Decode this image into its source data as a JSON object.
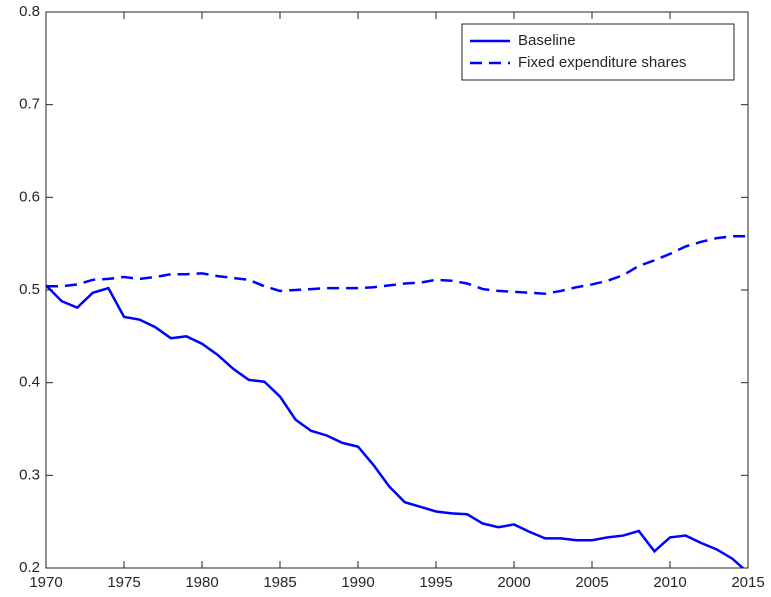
{
  "chart_data": {
    "type": "line",
    "x": [
      1970,
      1971,
      1972,
      1973,
      1974,
      1975,
      1976,
      1977,
      1978,
      1979,
      1980,
      1981,
      1982,
      1983,
      1984,
      1985,
      1986,
      1987,
      1988,
      1989,
      1990,
      1991,
      1992,
      1993,
      1994,
      1995,
      1996,
      1997,
      1998,
      1999,
      2000,
      2001,
      2002,
      2003,
      2004,
      2005,
      2006,
      2007,
      2008,
      2009,
      2010,
      2011,
      2012,
      2013,
      2014,
      2015
    ],
    "series": [
      {
        "name": "Baseline",
        "color": "#0000ff",
        "style": "solid",
        "values": [
          0.505,
          0.488,
          0.481,
          0.497,
          0.502,
          0.471,
          0.468,
          0.46,
          0.448,
          0.45,
          0.442,
          0.43,
          0.415,
          0.403,
          0.401,
          0.385,
          0.36,
          0.348,
          0.343,
          0.335,
          0.331,
          0.311,
          0.288,
          0.271,
          0.266,
          0.261,
          0.259,
          0.258,
          0.248,
          0.244,
          0.247,
          0.239,
          0.232,
          0.232,
          0.23,
          0.23,
          0.233,
          0.235,
          0.24,
          0.218,
          0.233,
          0.235,
          0.227,
          0.22,
          0.21,
          0.195
        ]
      },
      {
        "name": "Fixed expenditure shares",
        "color": "#0000ff",
        "style": "dashed",
        "values": [
          0.504,
          0.504,
          0.506,
          0.511,
          0.512,
          0.514,
          0.512,
          0.514,
          0.517,
          0.517,
          0.518,
          0.515,
          0.513,
          0.511,
          0.504,
          0.499,
          0.5,
          0.501,
          0.502,
          0.502,
          0.502,
          0.503,
          0.505,
          0.507,
          0.508,
          0.511,
          0.51,
          0.507,
          0.501,
          0.499,
          0.498,
          0.497,
          0.496,
          0.499,
          0.503,
          0.506,
          0.51,
          0.516,
          0.526,
          0.532,
          0.539,
          0.547,
          0.552,
          0.556,
          0.558,
          0.558
        ]
      }
    ],
    "xlim": [
      1970,
      2015
    ],
    "xticks": [
      1970,
      1975,
      1980,
      1985,
      1990,
      1995,
      2000,
      2005,
      2010,
      2015
    ],
    "ylim": [
      0.2,
      0.8
    ],
    "yticks": [
      0.2,
      0.3,
      0.4,
      0.5,
      0.6,
      0.7,
      0.8
    ],
    "grid": false,
    "legend": "northeast"
  }
}
